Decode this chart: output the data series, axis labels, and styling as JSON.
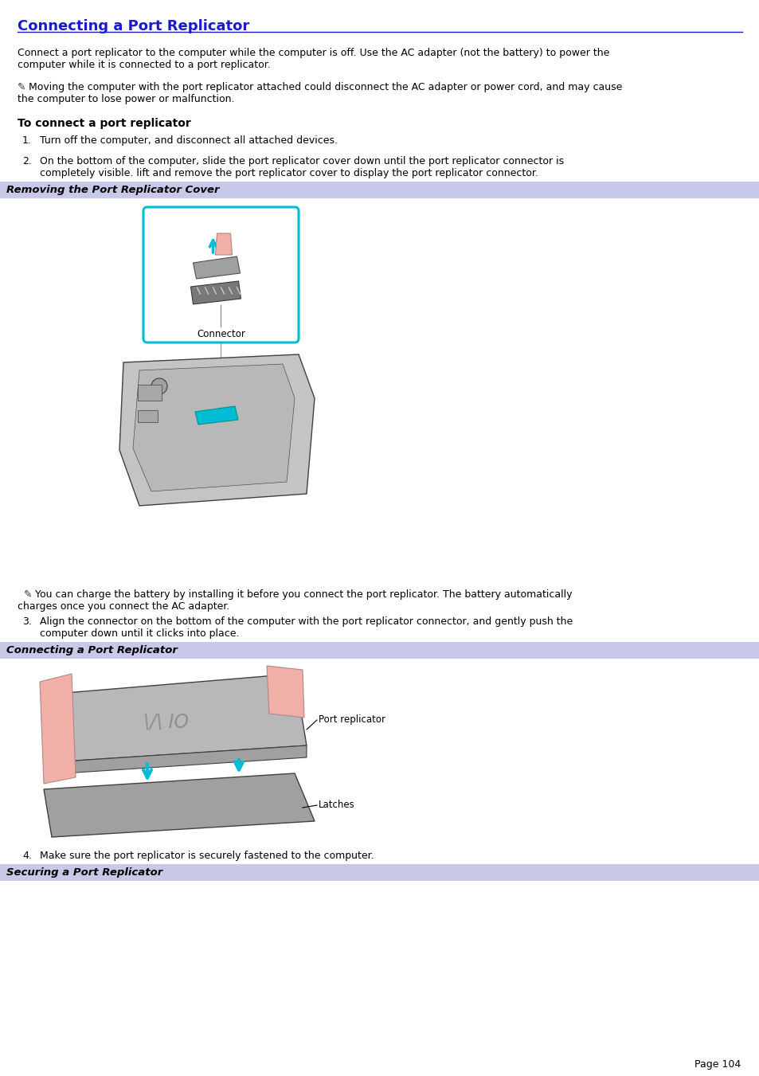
{
  "title": "Connecting a Port Replicator",
  "title_color": "#1a1acc",
  "bg_color": "#ffffff",
  "header_bg": "#c8c8e8",
  "page_number": "Page 104",
  "para1_l1": "Connect a port replicator to the computer while the computer is off. Use the AC adapter (not the battery) to power the",
  "para1_l2": "computer while it is connected to a port replicator.",
  "note1_l1": "Moving the computer with the port replicator attached could disconnect the AC adapter or power cord, and may cause",
  "note1_l2": "the computer to lose power or malfunction.",
  "sec_hdr": "To connect a port replicator",
  "step1": "Turn off the computer, and disconnect all attached devices.",
  "step2_l1": "On the bottom of the computer, slide the port replicator cover down until the port replicator connector is",
  "step2_l2": "completely visible. lift and remove the port replicator cover to display the port replicator connector.",
  "banner1": "Removing the Port Replicator Cover",
  "connector_lbl": "Connector",
  "note2_l1": "You can charge the battery by installing it before you connect the port replicator. The battery automatically",
  "note2_l2": "charges once you connect the AC adapter.",
  "step3_l1": "Align the connector on the bottom of the computer with the port replicator connector, and gently push the",
  "step3_l2": "computer down until it clicks into place.",
  "banner2": "Connecting a Port Replicator",
  "lbl_pr": "Port replicator",
  "lbl_latches": "Latches",
  "step4": "Make sure the port replicator is securely fastened to the computer.",
  "banner3": "Securing a Port Replicator",
  "cyan": "#00bcd4",
  "skin": "#f0b0a8",
  "gray1": "#c0c0c0",
  "gray2": "#909090",
  "gray3": "#707070"
}
